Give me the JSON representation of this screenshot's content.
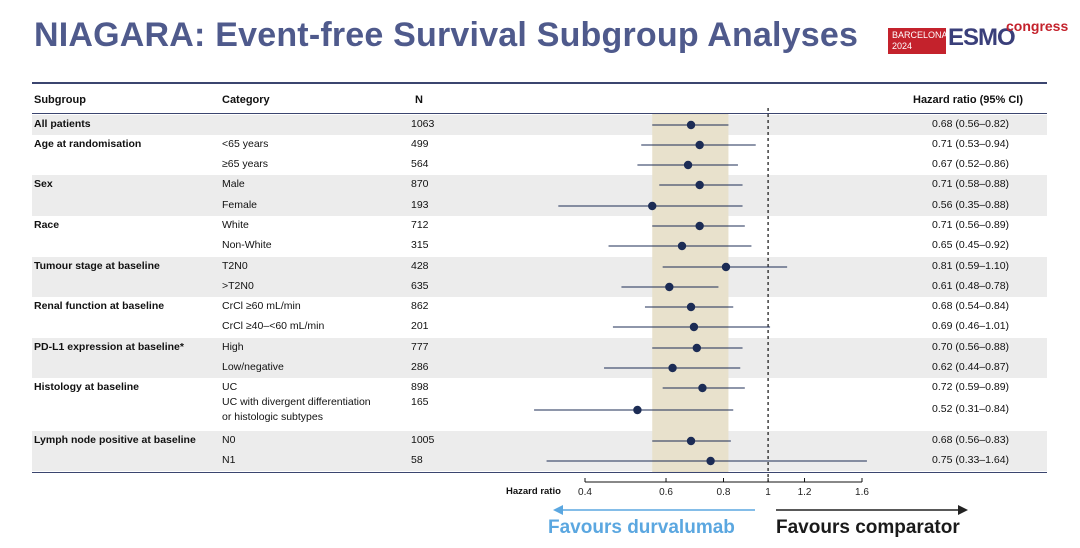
{
  "title": "NIAGARA: Event-free Survival Subgroup Analyses",
  "logo": {
    "line1": "BARCELONA",
    "line2": "2024",
    "brand": "ESMO",
    "suffix": "congress"
  },
  "headers": {
    "subgroup": "Subgroup",
    "category": "Category",
    "n": "N",
    "hr": "Hazard ratio (95% CI)"
  },
  "rows": [
    {
      "subgroup": "All patients",
      "category": "",
      "n": "1063",
      "hr_text": "0.68 (0.56–0.82)",
      "band": true
    },
    {
      "subgroup": "Age at randomisation",
      "category": "<65 years",
      "n": "499",
      "hr_text": "0.71 (0.53–0.94)",
      "band": false
    },
    {
      "subgroup": "",
      "category": "≥65 years",
      "n": "564",
      "hr_text": "0.67 (0.52–0.86)",
      "band": false
    },
    {
      "subgroup": "Sex",
      "category": "Male",
      "n": "870",
      "hr_text": "0.71 (0.58–0.88)",
      "band": true
    },
    {
      "subgroup": "",
      "category": "Female",
      "n": "193",
      "hr_text": "0.56 (0.35–0.88)",
      "band": true
    },
    {
      "subgroup": "Race",
      "category": "White",
      "n": "712",
      "hr_text": "0.71 (0.56–0.89)",
      "band": false
    },
    {
      "subgroup": "",
      "category": "Non-White",
      "n": "315",
      "hr_text": "0.65 (0.45–0.92)",
      "band": false
    },
    {
      "subgroup": "Tumour stage at baseline",
      "category": "T2N0",
      "n": "428",
      "hr_text": "0.81 (0.59–1.10)",
      "band": true
    },
    {
      "subgroup": "",
      "category": ">T2N0",
      "n": "635",
      "hr_text": "0.61 (0.48–0.78)",
      "band": true
    },
    {
      "subgroup": "Renal function at baseline",
      "category": "CrCl ≥60 mL/min",
      "n": "862",
      "hr_text": "0.68 (0.54–0.84)",
      "band": false
    },
    {
      "subgroup": "",
      "category": "CrCl ≥40–<60 mL/min",
      "n": "201",
      "hr_text": "0.69 (0.46–1.01)",
      "band": false
    },
    {
      "subgroup": "PD-L1 expression at baseline*",
      "category": "High",
      "n": "777",
      "hr_text": "0.70 (0.56–0.88)",
      "band": true
    },
    {
      "subgroup": "",
      "category": "Low/negative",
      "n": "286",
      "hr_text": "0.62 (0.44–0.87)",
      "band": true
    },
    {
      "subgroup": "Histology at baseline",
      "category": "UC",
      "n": "898",
      "hr_text": "0.72 (0.59–0.89)",
      "band": false
    },
    {
      "subgroup": "",
      "category": "UC with divergent differentiation",
      "category2": "or histologic subtypes",
      "n": "165",
      "hr_text": "0.52 (0.31–0.84)",
      "band": false
    },
    {
      "subgroup": "Lymph node positive at baseline",
      "category": "N0",
      "n": "1005",
      "hr_text": "0.68 (0.56–0.83)",
      "band": true
    },
    {
      "subgroup": "",
      "category": "N1",
      "n": "58",
      "hr_text": "0.75 (0.33–1.64)",
      "band": true
    }
  ],
  "chart_data": {
    "type": "forest",
    "xscale": "log",
    "xlim": [
      0.4,
      1.6
    ],
    "xlabel": "Hazard ratio",
    "ticks": [
      0.4,
      0.6,
      0.8,
      1,
      1.2,
      1.6
    ],
    "tick_labels": [
      "0.4",
      "0.6",
      "0.8",
      "1",
      "1.2",
      "1.6"
    ],
    "reference_line": 1,
    "overall_ci_band": [
      0.56,
      0.82
    ],
    "points": [
      {
        "hr": 0.68,
        "lo": 0.56,
        "hi": 0.82
      },
      {
        "hr": 0.71,
        "lo": 0.53,
        "hi": 0.94
      },
      {
        "hr": 0.67,
        "lo": 0.52,
        "hi": 0.86
      },
      {
        "hr": 0.71,
        "lo": 0.58,
        "hi": 0.88
      },
      {
        "hr": 0.56,
        "lo": 0.35,
        "hi": 0.88
      },
      {
        "hr": 0.71,
        "lo": 0.56,
        "hi": 0.89
      },
      {
        "hr": 0.65,
        "lo": 0.45,
        "hi": 0.92
      },
      {
        "hr": 0.81,
        "lo": 0.59,
        "hi": 1.1
      },
      {
        "hr": 0.61,
        "lo": 0.48,
        "hi": 0.78
      },
      {
        "hr": 0.68,
        "lo": 0.54,
        "hi": 0.84
      },
      {
        "hr": 0.69,
        "lo": 0.46,
        "hi": 1.01
      },
      {
        "hr": 0.7,
        "lo": 0.56,
        "hi": 0.88
      },
      {
        "hr": 0.62,
        "lo": 0.44,
        "hi": 0.87
      },
      {
        "hr": 0.72,
        "lo": 0.59,
        "hi": 0.89
      },
      {
        "hr": 0.52,
        "lo": 0.31,
        "hi": 0.84
      },
      {
        "hr": 0.68,
        "lo": 0.56,
        "hi": 0.83
      },
      {
        "hr": 0.75,
        "lo": 0.33,
        "hi": 1.64
      }
    ],
    "favours_left": "Favours durvalumab",
    "favours_right": "Favours comparator",
    "colors": {
      "point": "#1c2c55",
      "band": "#e8e1cc",
      "favours_left": "#5ba7e0",
      "row_band": "#ececec"
    }
  }
}
